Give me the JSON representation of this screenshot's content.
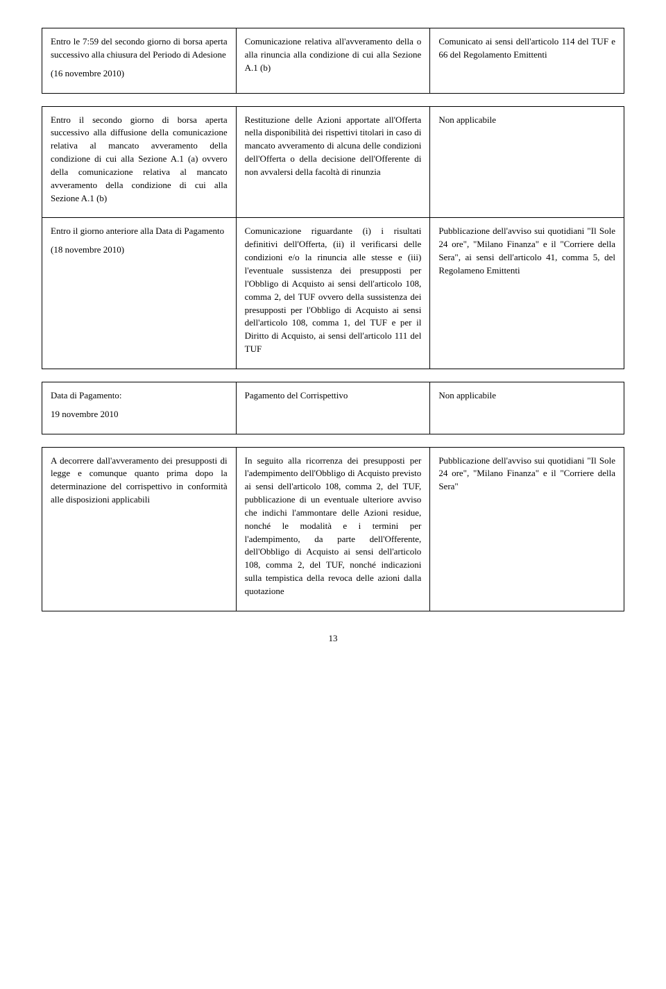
{
  "table1": {
    "rows": [
      {
        "c1": "Entro le 7:59 del secondo giorno di borsa aperta successivo alla chiusura del Periodo di Adesione\n\n(16 novembre 2010)",
        "c2": "Comunicazione relativa all'avveramento della o alla rinuncia alla condizione di cui alla Sezione A.1 (b)",
        "c3": "Comunicato ai sensi dell'articolo 114 del TUF e 66 del Regolamento Emittenti"
      }
    ]
  },
  "table2": {
    "rows": [
      {
        "c1": "Entro il secondo giorno di borsa aperta successivo alla diffusione della comunicazione relativa al mancato avveramento della condizione di cui alla Sezione A.1 (a) ovvero della comunicazione relativa al mancato avveramento della condizione di cui alla Sezione A.1 (b)",
        "c2": "Restituzione delle Azioni apportate all'Offerta nella disponibilità dei rispettivi titolari in caso di mancato avveramento di alcuna delle condizioni dell'Offerta o della decisione dell'Offerente di non avvalersi della facoltà di rinunzia",
        "c3": "Non applicabile"
      },
      {
        "c1": "Entro il giorno anteriore alla Data di Pagamento\n\n(18 novembre 2010)",
        "c2": "Comunicazione riguardante (i) i risultati definitivi dell'Offerta, (ii) il verificarsi delle condizioni e/o la rinuncia alle stesse e (iii) l'eventuale sussistenza dei presupposti per l'Obbligo di Acquisto ai sensi dell'articolo 108, comma 2, del TUF ovvero della sussistenza dei presupposti per l'Obbligo di Acquisto ai sensi dell'articolo 108, comma 1, del TUF e per il Diritto di Acquisto, ai sensi dell'articolo 111 del TUF",
        "c3": "Pubblicazione dell'avviso sui quotidiani \"Il Sole 24 ore\", \"Milano Finanza\" e il \"Corriere della Sera\", ai sensi dell'articolo 41, comma 5, del Regolameno Emittenti"
      }
    ]
  },
  "table3": {
    "rows": [
      {
        "c1": "Data di Pagamento:\n\n19 novembre 2010",
        "c2": "Pagamento del Corrispettivo",
        "c3": "Non applicabile"
      }
    ]
  },
  "table4": {
    "rows": [
      {
        "c1": "A decorrere dall'avveramento dei presupposti di legge e comunque quanto prima dopo la determinazione del corrispettivo in conformità alle disposizioni applicabili",
        "c2": "In seguito alla ricorrenza dei presupposti per l'adempimento dell'Obbligo di Acquisto previsto ai sensi dell'articolo 108, comma 2, del TUF, pubblicazione di un eventuale ulteriore avviso che indichi l'ammontare delle Azioni residue, nonché le modalità e i termini per l'adempimento, da parte dell'Offerente, dell'Obbligo di Acquisto ai sensi dell'articolo 108, comma 2, del TUF, nonché indicazioni sulla tempistica della revoca delle azioni dalla quotazione",
        "c3": "Pubblicazione dell'avviso sui quotidiani \"Il Sole 24 ore\", \"Milano Finanza\" e il \"Corriere della Sera\""
      }
    ]
  },
  "pageNumber": "13"
}
